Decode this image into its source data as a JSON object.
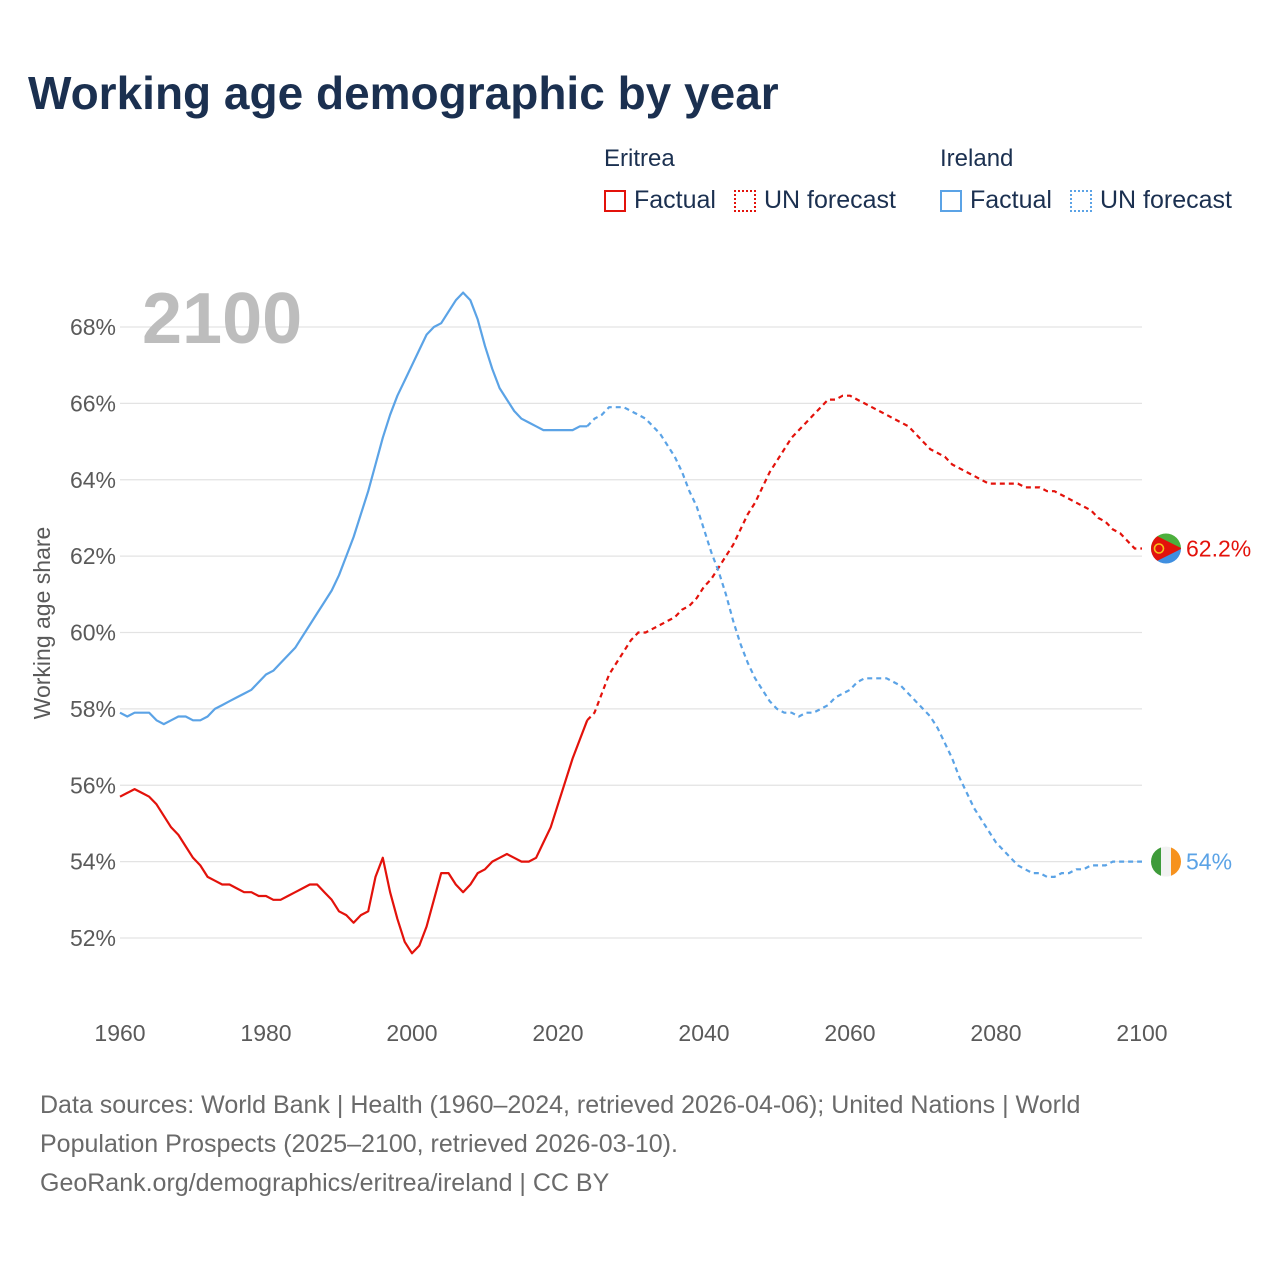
{
  "page": {
    "title": "Working age demographic by year"
  },
  "legend": {
    "groups": [
      {
        "name": "Eritrea",
        "color": "#e3120b",
        "factual_label": "Factual",
        "forecast_label": "UN forecast"
      },
      {
        "name": "Ireland",
        "color": "#5ba3e6",
        "factual_label": "Factual",
        "forecast_label": "UN forecast"
      }
    ]
  },
  "footer": {
    "line1": "Data sources: World Bank | Health (1960–2024, retrieved 2026-04-06); United Nations | World",
    "line2": "Population Prospects (2025–2100, retrieved 2026-03-10).",
    "line3": "GeoRank.org/demographics/eritrea/ireland | CC BY"
  },
  "chart_data": {
    "type": "line",
    "title": "Working age demographic by year",
    "current_year_label": "2100",
    "ylabel": "Working age share",
    "xlabel": "",
    "xlim": [
      1960,
      2100
    ],
    "ylim": [
      50.8,
      69.5
    ],
    "x_ticks": [
      1960,
      1980,
      2000,
      2020,
      2040,
      2060,
      2080,
      2100
    ],
    "y_ticks": [
      52,
      54,
      56,
      58,
      60,
      62,
      64,
      66,
      68
    ],
    "y_tick_labels": [
      "52%",
      "54%",
      "56%",
      "58%",
      "60%",
      "62%",
      "64%",
      "66%",
      "68%"
    ],
    "grid": true,
    "series": [
      {
        "name": "Eritrea",
        "color": "#e3120b",
        "end_label": "62.2%",
        "flag_icon": "eritrea-flag-icon",
        "factual": {
          "x": [
            1960,
            1961,
            1962,
            1963,
            1964,
            1965,
            1966,
            1967,
            1968,
            1969,
            1970,
            1971,
            1972,
            1973,
            1974,
            1975,
            1976,
            1977,
            1978,
            1979,
            1980,
            1981,
            1982,
            1983,
            1984,
            1985,
            1986,
            1987,
            1988,
            1989,
            1990,
            1991,
            1992,
            1993,
            1994,
            1995,
            1996,
            1997,
            1998,
            1999,
            2000,
            2001,
            2002,
            2003,
            2004,
            2005,
            2006,
            2007,
            2008,
            2009,
            2010,
            2011,
            2012,
            2013,
            2014,
            2015,
            2016,
            2017,
            2018,
            2019,
            2020,
            2021,
            2022,
            2023,
            2024
          ],
          "y": [
            55.7,
            55.8,
            55.9,
            55.8,
            55.7,
            55.5,
            55.2,
            54.9,
            54.7,
            54.4,
            54.1,
            53.9,
            53.6,
            53.5,
            53.4,
            53.4,
            53.3,
            53.2,
            53.2,
            53.1,
            53.1,
            53.0,
            53.0,
            53.1,
            53.2,
            53.3,
            53.4,
            53.4,
            53.2,
            53.0,
            52.7,
            52.6,
            52.4,
            52.6,
            52.7,
            53.6,
            54.1,
            53.2,
            52.5,
            51.9,
            51.6,
            51.8,
            52.3,
            53.0,
            53.7,
            53.7,
            53.4,
            53.2,
            53.4,
            53.7,
            53.8,
            54.0,
            54.1,
            54.2,
            54.1,
            54.0,
            54.0,
            54.1,
            54.5,
            54.9,
            55.5,
            56.1,
            56.7,
            57.2,
            57.7
          ]
        },
        "forecast": {
          "x": [
            2024,
            2025,
            2026,
            2027,
            2028,
            2029,
            2030,
            2031,
            2032,
            2033,
            2034,
            2035,
            2036,
            2037,
            2038,
            2039,
            2040,
            2041,
            2042,
            2043,
            2044,
            2045,
            2046,
            2047,
            2048,
            2049,
            2050,
            2051,
            2052,
            2053,
            2054,
            2055,
            2056,
            2057,
            2058,
            2059,
            2060,
            2061,
            2062,
            2063,
            2064,
            2065,
            2066,
            2067,
            2068,
            2069,
            2070,
            2071,
            2072,
            2073,
            2074,
            2075,
            2076,
            2077,
            2078,
            2079,
            2080,
            2081,
            2082,
            2083,
            2084,
            2085,
            2086,
            2087,
            2088,
            2089,
            2090,
            2091,
            2092,
            2093,
            2094,
            2095,
            2096,
            2097,
            2098,
            2099,
            2100
          ],
          "y": [
            57.7,
            57.9,
            58.4,
            58.9,
            59.2,
            59.5,
            59.8,
            60.0,
            60.0,
            60.1,
            60.2,
            60.3,
            60.4,
            60.6,
            60.7,
            60.9,
            61.2,
            61.4,
            61.7,
            62.0,
            62.3,
            62.7,
            63.1,
            63.4,
            63.8,
            64.2,
            64.5,
            64.8,
            65.1,
            65.3,
            65.5,
            65.7,
            65.9,
            66.1,
            66.1,
            66.2,
            66.2,
            66.1,
            66.0,
            65.9,
            65.8,
            65.7,
            65.6,
            65.5,
            65.4,
            65.2,
            65.0,
            64.8,
            64.7,
            64.6,
            64.4,
            64.3,
            64.2,
            64.1,
            64.0,
            63.9,
            63.9,
            63.9,
            63.9,
            63.9,
            63.8,
            63.8,
            63.8,
            63.7,
            63.7,
            63.6,
            63.5,
            63.4,
            63.3,
            63.2,
            63.0,
            62.9,
            62.7,
            62.6,
            62.4,
            62.2,
            62.2
          ]
        }
      },
      {
        "name": "Ireland",
        "color": "#5ba3e6",
        "end_label": "54%",
        "flag_icon": "ireland-flag-icon",
        "factual": {
          "x": [
            1960,
            1961,
            1962,
            1963,
            1964,
            1965,
            1966,
            1967,
            1968,
            1969,
            1970,
            1971,
            1972,
            1973,
            1974,
            1975,
            1976,
            1977,
            1978,
            1979,
            1980,
            1981,
            1982,
            1983,
            1984,
            1985,
            1986,
            1987,
            1988,
            1989,
            1990,
            1991,
            1992,
            1993,
            1994,
            1995,
            1996,
            1997,
            1998,
            1999,
            2000,
            2001,
            2002,
            2003,
            2004,
            2005,
            2006,
            2007,
            2008,
            2009,
            2010,
            2011,
            2012,
            2013,
            2014,
            2015,
            2016,
            2017,
            2018,
            2019,
            2020,
            2021,
            2022,
            2023,
            2024
          ],
          "y": [
            57.9,
            57.8,
            57.9,
            57.9,
            57.9,
            57.7,
            57.6,
            57.7,
            57.8,
            57.8,
            57.7,
            57.7,
            57.8,
            58.0,
            58.1,
            58.2,
            58.3,
            58.4,
            58.5,
            58.7,
            58.9,
            59.0,
            59.2,
            59.4,
            59.6,
            59.9,
            60.2,
            60.5,
            60.8,
            61.1,
            61.5,
            62.0,
            62.5,
            63.1,
            63.7,
            64.4,
            65.1,
            65.7,
            66.2,
            66.6,
            67.0,
            67.4,
            67.8,
            68.0,
            68.1,
            68.4,
            68.7,
            68.9,
            68.7,
            68.2,
            67.5,
            66.9,
            66.4,
            66.1,
            65.8,
            65.6,
            65.5,
            65.4,
            65.3,
            65.3,
            65.3,
            65.3,
            65.3,
            65.4,
            65.4
          ]
        },
        "forecast": {
          "x": [
            2024,
            2025,
            2026,
            2027,
            2028,
            2029,
            2030,
            2031,
            2032,
            2033,
            2034,
            2035,
            2036,
            2037,
            2038,
            2039,
            2040,
            2041,
            2042,
            2043,
            2044,
            2045,
            2046,
            2047,
            2048,
            2049,
            2050,
            2051,
            2052,
            2053,
            2054,
            2055,
            2056,
            2057,
            2058,
            2059,
            2060,
            2061,
            2062,
            2063,
            2064,
            2065,
            2066,
            2067,
            2068,
            2069,
            2070,
            2071,
            2072,
            2073,
            2074,
            2075,
            2076,
            2077,
            2078,
            2079,
            2080,
            2081,
            2082,
            2083,
            2084,
            2085,
            2086,
            2087,
            2088,
            2089,
            2090,
            2091,
            2092,
            2093,
            2094,
            2095,
            2096,
            2097,
            2098,
            2099,
            2100
          ],
          "y": [
            65.4,
            65.6,
            65.7,
            65.9,
            65.9,
            65.9,
            65.8,
            65.7,
            65.6,
            65.4,
            65.2,
            64.9,
            64.6,
            64.2,
            63.7,
            63.3,
            62.7,
            62.1,
            61.6,
            61.0,
            60.3,
            59.7,
            59.2,
            58.8,
            58.5,
            58.2,
            58.0,
            57.9,
            57.9,
            57.8,
            57.9,
            57.9,
            58.0,
            58.1,
            58.3,
            58.4,
            58.5,
            58.7,
            58.8,
            58.8,
            58.8,
            58.8,
            58.7,
            58.6,
            58.4,
            58.2,
            58.0,
            57.8,
            57.5,
            57.1,
            56.7,
            56.2,
            55.8,
            55.4,
            55.1,
            54.8,
            54.5,
            54.3,
            54.1,
            53.9,
            53.8,
            53.7,
            53.7,
            53.6,
            53.6,
            53.7,
            53.7,
            53.8,
            53.8,
            53.9,
            53.9,
            53.9,
            54.0,
            54.0,
            54.0,
            54.0,
            54.0
          ]
        }
      }
    ]
  }
}
